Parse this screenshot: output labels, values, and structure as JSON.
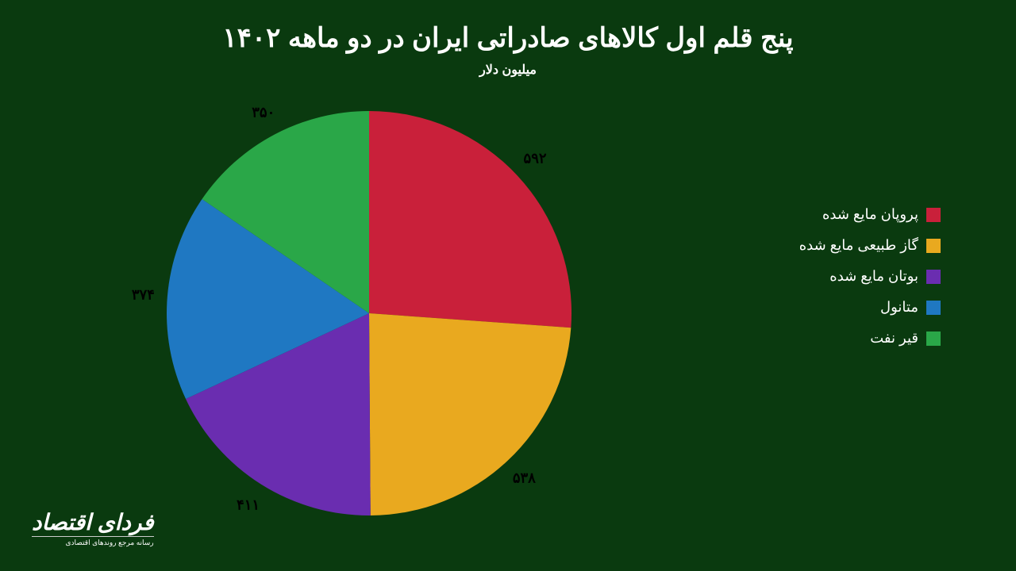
{
  "title": "پنج قلم اول کالاهای صادراتی ایران در دو ماهه ۱۴۰۲",
  "subtitle": "میلیون دلار",
  "title_fontsize": 34,
  "subtitle_fontsize": 16,
  "title_color": "#ffffff",
  "subtitle_color": "#ffffff",
  "background_color": "#0a3a0f",
  "text_color": "#ffffff",
  "chart": {
    "type": "pie",
    "start_angle": -90,
    "direction": "clockwise",
    "label_fontsize": 18,
    "label_color": "#000000",
    "label_radius_factor": 1.12,
    "slices": [
      {
        "label": "پروپان مایع شده",
        "value": 592,
        "display": "۵۹۲",
        "color": "#c9203a"
      },
      {
        "label": "گاز طبیعی مایع شده",
        "value": 538,
        "display": "۵۳۸",
        "color": "#e9a91f"
      },
      {
        "label": "بوتان مایع شده",
        "value": 411,
        "display": "۴۱۱",
        "color": "#6a2db0"
      },
      {
        "label": "متانول",
        "value": 374,
        "display": "۳۷۴",
        "color": "#1f78c2"
      },
      {
        "label": "قیر نفت",
        "value": 350,
        "display": "۳۵۰",
        "color": "#2aa748"
      }
    ]
  },
  "legend_fontsize": 18,
  "legend_color": "#ffffff",
  "logo": {
    "main": "فردای اقتصاد",
    "sub": "رسانه مرجع روندهای اقتصادی"
  }
}
